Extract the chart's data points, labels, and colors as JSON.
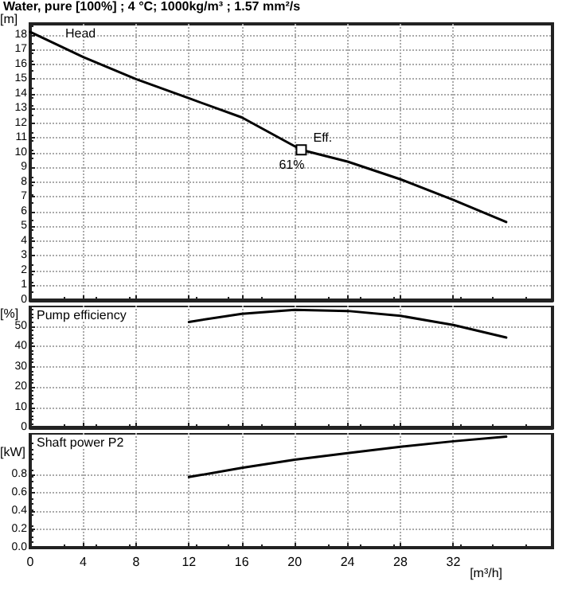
{
  "chart_data": [
    {
      "type": "line",
      "title": "Water, pure [100%] ; 4 °C; 1000kg/m³ ; 1.57 mm²/s",
      "subtitle": "Head",
      "ylabel": "[m]",
      "series": [
        {
          "color": "#000000",
          "x": [
            0,
            4,
            8,
            12,
            16,
            20.5,
            24,
            28,
            32,
            36
          ],
          "values": [
            18.2,
            16.5,
            15.0,
            13.7,
            12.4,
            10.2,
            9.4,
            8.2,
            6.8,
            5.3
          ]
        }
      ],
      "annotations": [
        {
          "text": "Eff.",
          "x": 20.5,
          "y": 10.2
        },
        {
          "text": "61%",
          "x": 20.5,
          "y": 10.2
        }
      ],
      "xlim": [
        0,
        39.5
      ],
      "xticks": [
        0,
        4,
        8,
        12,
        16,
        20,
        24,
        28,
        32
      ],
      "ylim": [
        0,
        18.75
      ],
      "yticks": [
        0,
        1,
        2,
        3,
        4,
        5,
        6,
        7,
        8,
        9,
        10,
        11,
        12,
        13,
        14,
        15,
        16,
        17,
        18
      ],
      "grid": true,
      "marker": "none",
      "line_style": "solid",
      "tick_labels": "y"
    },
    {
      "type": "line",
      "subtitle": "Pump efficiency",
      "ylabel": "[%]",
      "series": [
        {
          "color": "#000000",
          "x": [
            12,
            16,
            20,
            24,
            28,
            32,
            36
          ],
          "values": [
            52,
            56,
            57.9,
            57.4,
            55,
            50.5,
            44.3
          ]
        }
      ],
      "xlim": [
        0,
        39.5
      ],
      "xticks": [
        0,
        4,
        8,
        12,
        16,
        20,
        24,
        28,
        32
      ],
      "ylim": [
        0,
        60
      ],
      "yticks": [
        0,
        10,
        20,
        30,
        40,
        50
      ],
      "grid": true,
      "marker": "none",
      "line_style": "solid",
      "tick_labels": "y"
    },
    {
      "type": "line",
      "subtitle": "Shaft power P2",
      "ylabel": "[kW]",
      "xlabel": "[m³/h]",
      "series": [
        {
          "color": "#000000",
          "x": [
            12,
            16,
            20,
            24,
            28,
            32,
            36
          ],
          "values": [
            0.77,
            0.87,
            0.96,
            1.03,
            1.1,
            1.16,
            1.21
          ]
        }
      ],
      "xlim": [
        0,
        39.5
      ],
      "xticks": [
        0,
        4,
        8,
        12,
        16,
        20,
        24,
        28,
        32
      ],
      "ylim": [
        0,
        1.25
      ],
      "yticks": [
        {
          "value": 0,
          "label": "0.0"
        },
        0.2,
        0.4,
        0.6,
        0.8
      ],
      "grid": true,
      "marker": "none",
      "line_style": "solid"
    }
  ]
}
